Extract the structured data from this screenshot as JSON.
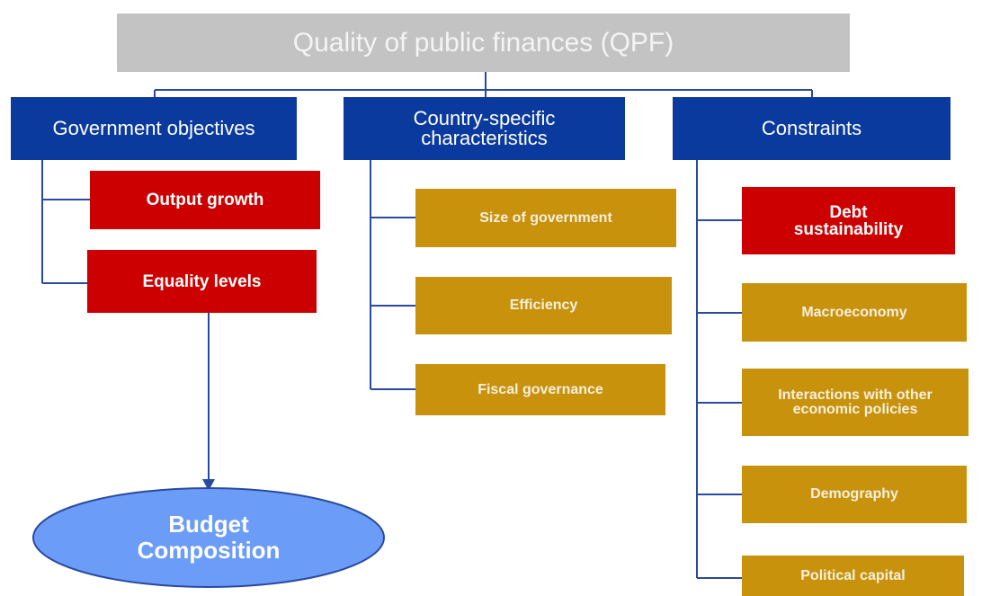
{
  "title": "Quality of public finances (QPF)",
  "columns": [
    {
      "header": "Government objectives",
      "items": [
        "Output growth",
        "Equality levels"
      ]
    },
    {
      "header": "Country-specific characteristics",
      "items": [
        "Size of government",
        "Efficiency",
        "Fiscal governance"
      ]
    },
    {
      "header": "Constraints",
      "items": [
        "Debt sustainability",
        "Macroeconomy",
        "Interactions with other economic policies",
        "Demography",
        "Political capital"
      ]
    }
  ],
  "outcome": "Budget Composition"
}
